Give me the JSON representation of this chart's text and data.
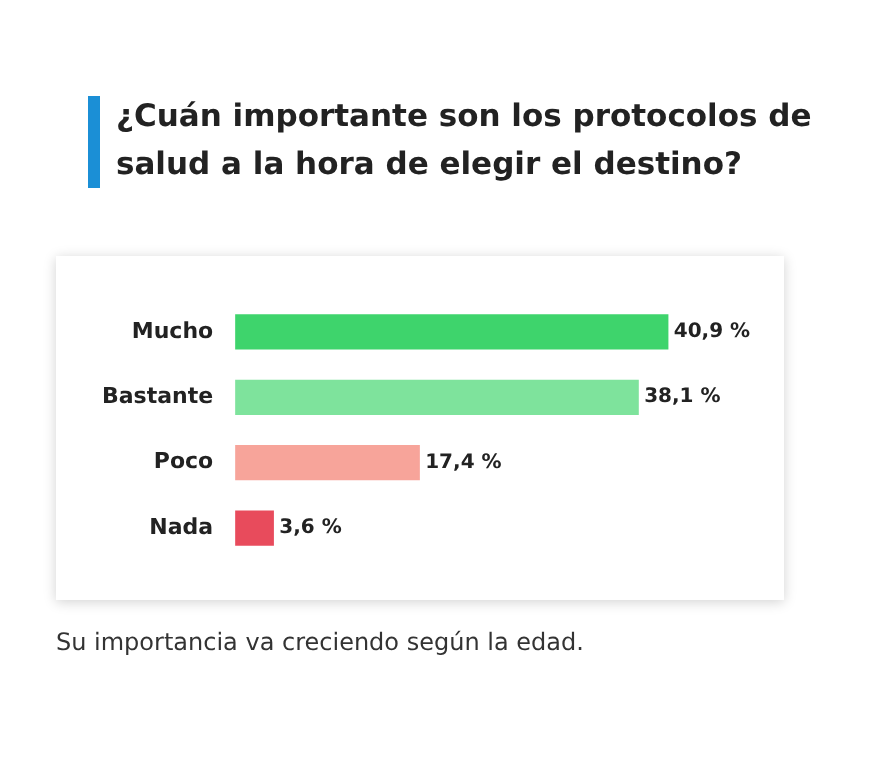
{
  "chart_data": {
    "type": "bar",
    "orientation": "horizontal",
    "title": "¿Cuán  importante son los protocolos de salud a la hora de elegir el destino?",
    "categories": [
      "Mucho",
      "Bastante",
      "Poco",
      "Nada"
    ],
    "values": [
      40.9,
      38.1,
      17.4,
      3.6
    ],
    "colors": [
      "#3ed46c",
      "#7ee39c",
      "#f7a49a",
      "#e84b5c"
    ],
    "value_labels": [
      "40,9 %",
      "38,1 %",
      "17,4 %",
      "3,6 %"
    ],
    "annotations": [
      "Su importancia va creciendo según la edad."
    ],
    "legend": false
  }
}
